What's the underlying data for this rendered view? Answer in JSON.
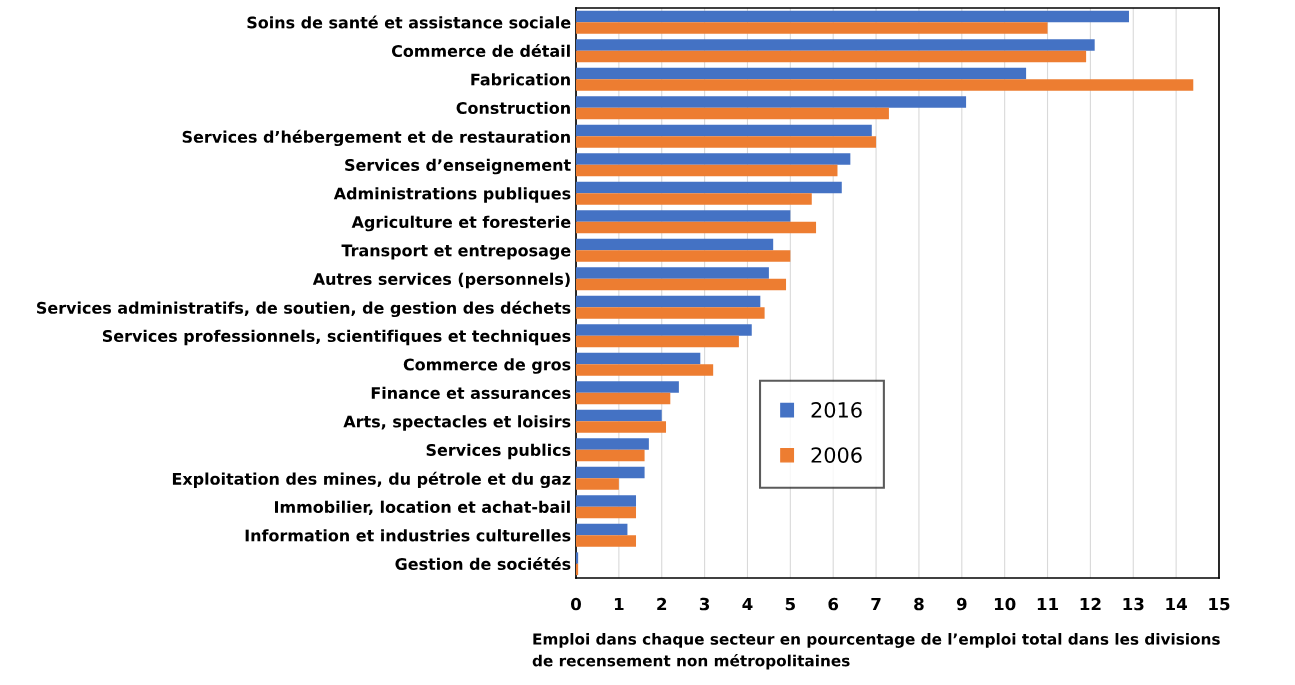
{
  "chart_data": {
    "type": "bar",
    "orientation": "horizontal",
    "categories": [
      "Soins de santé et assistance sociale",
      "Commerce de détail",
      "Fabrication",
      "Construction",
      "Services d’hébergement et de restauration",
      "Services d’enseignement",
      "Administrations publiques",
      "Agriculture et foresterie",
      "Transport et entreposage",
      "Autres services (personnels)",
      "Services administratifs, de soutien, de gestion des déchets",
      "Services professionnels, scientifiques et techniques",
      "Commerce de gros",
      "Finance et assurances",
      "Arts, spectacles et loisirs",
      "Services publics",
      "Exploitation des mines, du pétrole et du gaz",
      "Immobilier, location et achat-bail",
      "Information et industries culturelles",
      "Gestion de sociétés"
    ],
    "series": [
      {
        "name": "2016",
        "color": "#4472c4",
        "values": [
          12.9,
          12.1,
          10.5,
          9.1,
          6.9,
          6.4,
          6.2,
          5.0,
          4.6,
          4.5,
          4.3,
          4.1,
          2.9,
          2.4,
          2.0,
          1.7,
          1.6,
          1.4,
          1.2,
          0.05
        ]
      },
      {
        "name": "2006",
        "color": "#ed7d31",
        "values": [
          11.0,
          11.9,
          14.4,
          7.3,
          7.0,
          6.1,
          5.5,
          5.6,
          5.0,
          4.9,
          4.4,
          3.8,
          3.2,
          2.2,
          2.1,
          1.6,
          1.0,
          1.4,
          1.4,
          0.05
        ]
      }
    ],
    "xlim": [
      0,
      15
    ],
    "xticks": [
      0,
      1,
      2,
      3,
      4,
      5,
      6,
      7,
      8,
      9,
      10,
      11,
      12,
      13,
      14,
      15
    ],
    "xlabel": "Emploi dans chaque secteur en pourcentage de l’emploi total dans les divisions\nde recensement non métropolitaines",
    "grid": "x",
    "legend": "bottom"
  }
}
